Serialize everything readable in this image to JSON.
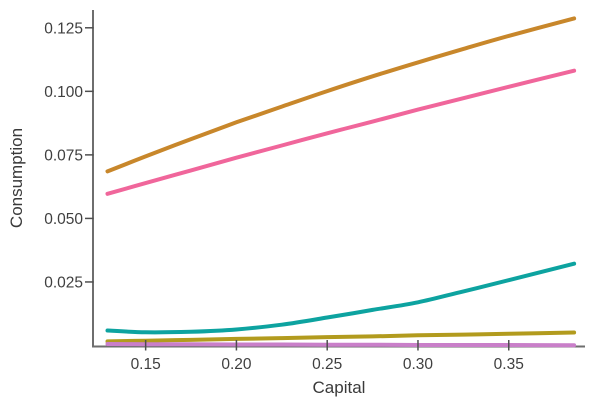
{
  "figure": {
    "background": "#ffffff"
  },
  "chart_data": {
    "type": "line",
    "title": "",
    "xlabel": "Capital",
    "ylabel": "Consumption",
    "xlim": [
      0.121,
      0.392
    ],
    "ylim": [
      0,
      0.132
    ],
    "grid": false,
    "legend": "none",
    "x_ticks": {
      "values": [
        0.15,
        0.2,
        0.25,
        0.3,
        0.35
      ],
      "labels": [
        "0.15",
        "0.20",
        "0.25",
        "0.30",
        "0.35"
      ]
    },
    "y_ticks": {
      "values": [
        0.025,
        0.05,
        0.075,
        0.1,
        0.125
      ],
      "labels": [
        "0.025",
        "0.050",
        "0.075",
        "0.100",
        "0.125"
      ]
    },
    "x": [
      0.129,
      0.15,
      0.175,
      0.2,
      0.225,
      0.25,
      0.275,
      0.3,
      0.325,
      0.35,
      0.386
    ],
    "series": [
      {
        "name": "orange-line",
        "color": "#C8872B",
        "values": [
          0.0685,
          0.0744,
          0.0812,
          0.0878,
          0.094,
          0.1001,
          0.1059,
          0.1114,
          0.1167,
          0.1218,
          0.1287
        ]
      },
      {
        "name": "pink-line",
        "color": "#F0669B",
        "values": [
          0.0597,
          0.0639,
          0.0689,
          0.0739,
          0.0787,
          0.0835,
          0.0881,
          0.0928,
          0.0973,
          0.1018,
          0.1081
        ]
      },
      {
        "name": "teal-line",
        "color": "#0DA3A0",
        "values": [
          0.0059,
          0.0052,
          0.0054,
          0.0063,
          0.0082,
          0.011,
          0.014,
          0.017,
          0.0213,
          0.0257,
          0.0322
        ]
      },
      {
        "name": "olive-line",
        "color": "#B29B1E",
        "values": [
          0.0016,
          0.0019,
          0.0022,
          0.0026,
          0.0029,
          0.0033,
          0.0036,
          0.004,
          0.0043,
          0.0046,
          0.0051
        ]
      },
      {
        "name": "lavender-line",
        "color": "#C97FC9",
        "values": [
          0.0006,
          0.0005,
          0.0005,
          0.0004,
          0.0004,
          0.0003,
          0.0003,
          0.0002,
          0.0002,
          0.0002,
          0.0001
        ]
      }
    ],
    "style": {
      "line_width": 4,
      "spine_color": "#6e6e6e",
      "tick_color": "#4f4f4f",
      "tick_label_color": "#3f3f3f",
      "axis_label_color": "#3a3a3a"
    }
  }
}
